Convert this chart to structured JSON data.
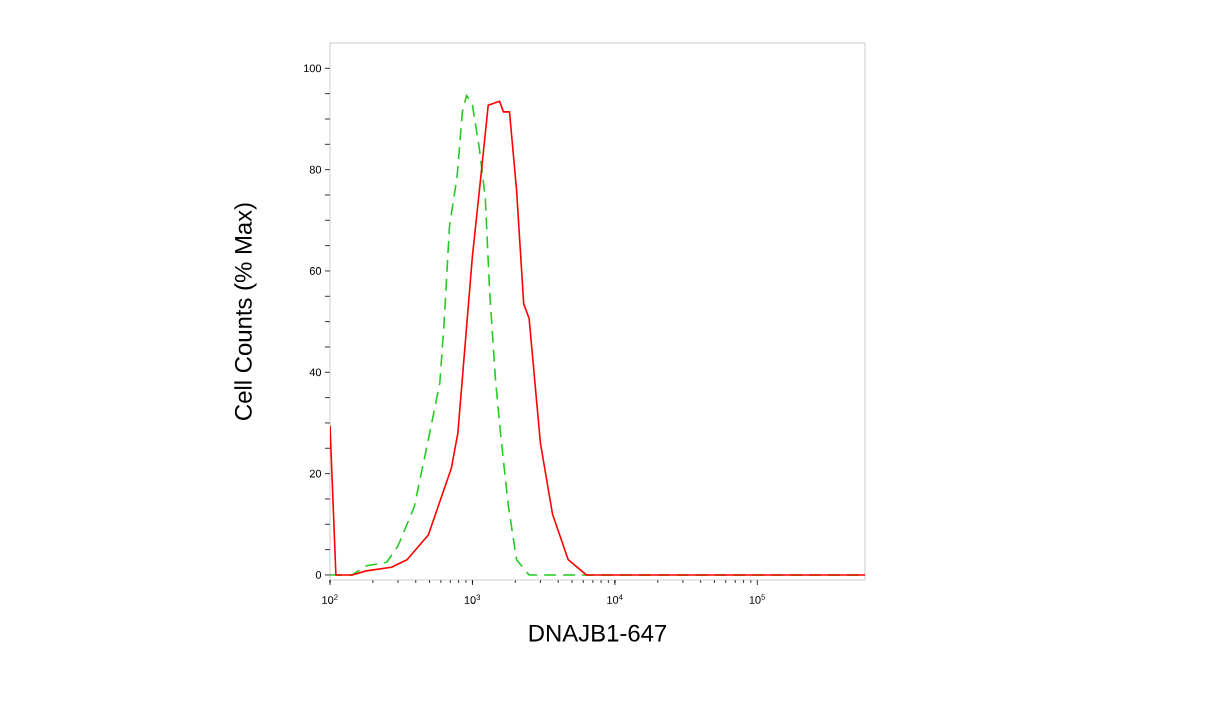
{
  "chart_data": {
    "type": "line",
    "xlabel": "DNAJB1-647",
    "ylabel": "Cell Counts (% Max)",
    "log": "x",
    "xlim": [
      100,
      570000
    ],
    "ylim": [
      -1,
      105
    ],
    "xticks": [
      {
        "value": 100,
        "label": "10$^{2}$"
      },
      {
        "value": 1000,
        "label": "10$^{3}$"
      },
      {
        "value": 10000,
        "label": "10$^{4}$"
      },
      {
        "value": 100000,
        "label": "10$^{5}$"
      }
    ],
    "yticks": [
      0,
      {
        "value": 5,
        "label": null
      },
      {
        "value": 10,
        "label": null
      },
      {
        "value": 15,
        "label": null
      },
      20,
      {
        "value": 25,
        "label": null
      },
      {
        "value": 30,
        "label": null
      },
      {
        "value": 35,
        "label": null
      },
      40,
      {
        "value": 45,
        "label": null
      },
      {
        "value": 50,
        "label": null
      },
      {
        "value": 55,
        "label": null
      },
      60,
      {
        "value": 65,
        "label": null
      },
      {
        "value": 70,
        "label": null
      },
      {
        "value": 75,
        "label": null
      },
      80,
      {
        "value": 85,
        "label": null
      },
      {
        "value": 90,
        "label": null
      },
      {
        "value": 95,
        "label": null
      },
      100
    ],
    "grid": false,
    "marker": "none",
    "series": [
      {
        "color": "#22cc22",
        "line_style": "dashed",
        "x": [
          100,
          143,
          180,
          250,
          300,
          390,
          490,
          590,
          630,
          690,
          780,
          850,
          910,
          1000,
          1120,
          1230,
          1320,
          1450,
          1580,
          1780,
          2040,
          2500,
          570000
        ],
        "values": [
          0,
          0,
          1.8,
          2.5,
          5.7,
          13.4,
          26.7,
          37.9,
          49,
          68.8,
          78.6,
          91.4,
          94.7,
          92.7,
          84,
          74.5,
          56,
          38.7,
          27.5,
          14,
          3,
          0,
          0
        ]
      },
      {
        "color": "#ff0000",
        "line_style": "solid",
        "x": [
          100,
          110,
          143,
          180,
          270,
          347,
          490,
          710,
          790,
          890,
          1000,
          1120,
          1290,
          1550,
          1650,
          1820,
          2040,
          2290,
          2500,
          3000,
          3650,
          4700,
          6300,
          570000
        ],
        "values": [
          29.5,
          0,
          0,
          0.8,
          1.5,
          3,
          7.9,
          21,
          28,
          45.7,
          63,
          76,
          92.7,
          93.5,
          91.4,
          91.4,
          76,
          53.5,
          50.6,
          26,
          12,
          3,
          0,
          0
        ]
      }
    ]
  }
}
